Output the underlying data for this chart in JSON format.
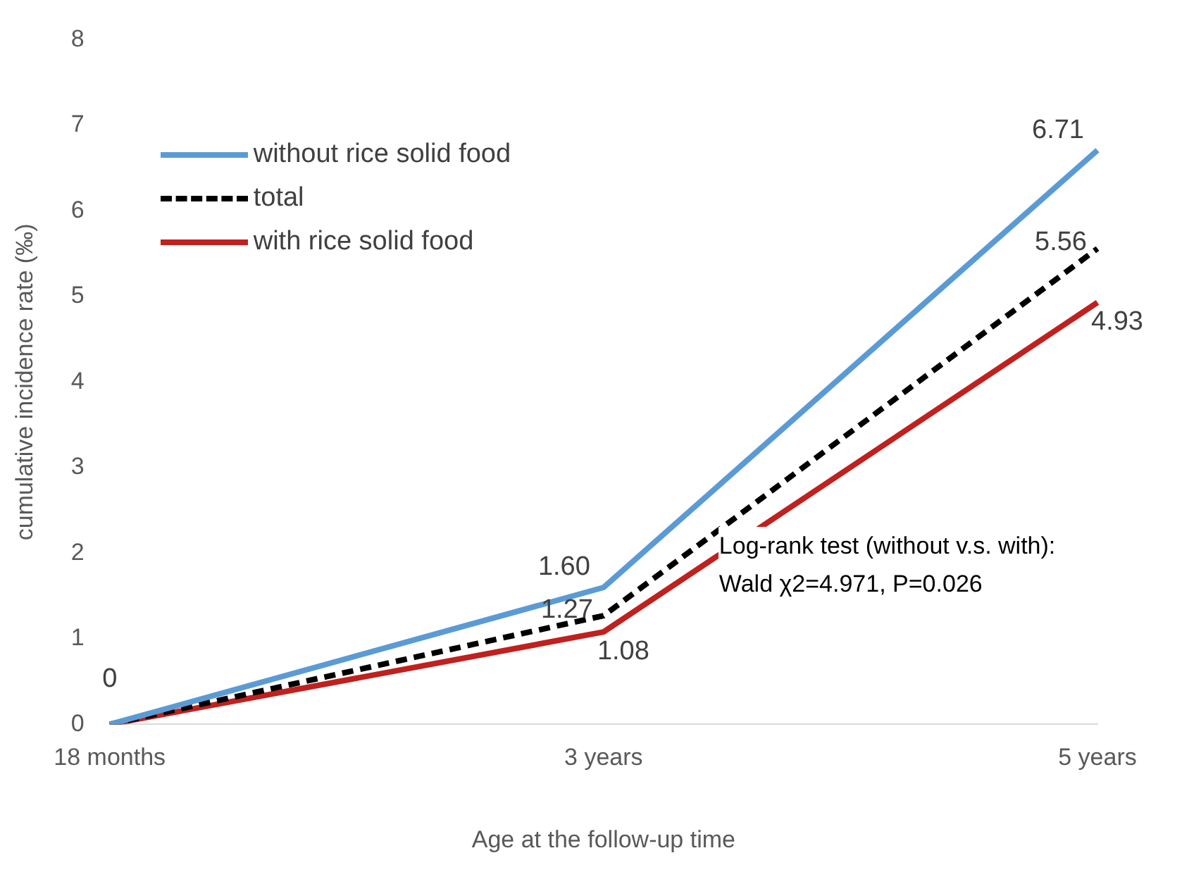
{
  "chart_data": {
    "type": "line",
    "xlabel": "Age at the follow-up time",
    "ylabel": "cumulative incidence rate (‰)",
    "categories": [
      "18 months",
      "3 years",
      "5 years"
    ],
    "series": [
      {
        "name": "without rice solid food",
        "color": "#5b9bd5",
        "values": [
          0,
          1.6,
          6.71
        ],
        "value_labels": [
          "0",
          "1.60",
          "6.71"
        ],
        "line_style": "solid"
      },
      {
        "name": "total",
        "color": "#000000",
        "values": [
          0,
          1.27,
          5.56
        ],
        "value_labels": [
          null,
          "1.27",
          "5.56"
        ],
        "line_style": "dashed"
      },
      {
        "name": "with rice solid food",
        "color": "#c0201e",
        "values": [
          0,
          1.08,
          4.93
        ],
        "value_labels": [
          null,
          "1.08",
          "4.93"
        ],
        "line_style": "solid"
      }
    ],
    "ylim": [
      0,
      8
    ],
    "yticks": [
      0,
      1,
      2,
      3,
      4,
      5,
      6,
      7,
      8
    ],
    "legend": "top left",
    "marker": "none",
    "grid": false,
    "annotations": [
      "Log-rank test (without v.s. with):",
      "Wald χ2=4.971, P=0.026"
    ]
  }
}
